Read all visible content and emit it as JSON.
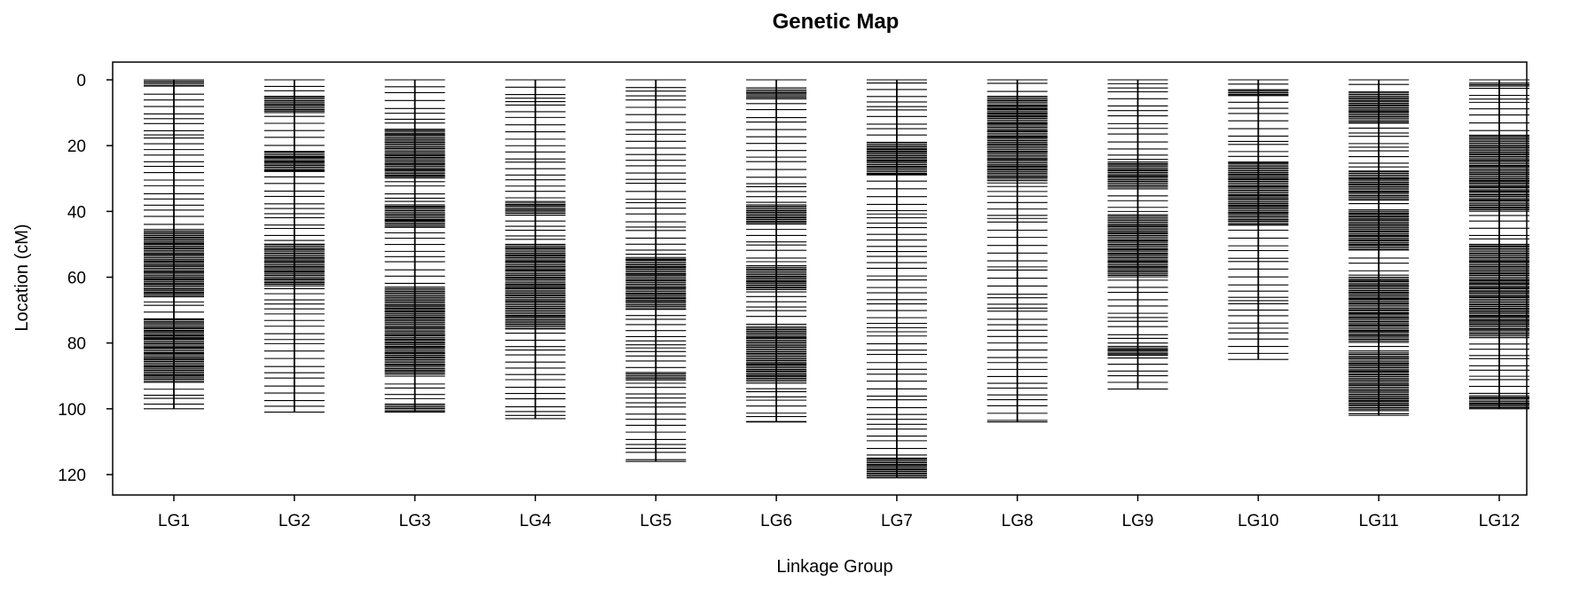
{
  "chart_data": {
    "type": "genetic_map",
    "title": "Genetic Map",
    "xlabel": "Linkage Group",
    "ylabel": "Location (cM)",
    "ylim": [
      0,
      126
    ],
    "y_reversed": true,
    "yticks": [
      0,
      20,
      40,
      60,
      80,
      100,
      120
    ],
    "linkage_groups": [
      {
        "name": "LG1",
        "length": 100,
        "dense_regions": [
          [
            46,
            66
          ],
          [
            73,
            92
          ],
          [
            0,
            2
          ]
        ]
      },
      {
        "name": "LG2",
        "length": 101,
        "dense_regions": [
          [
            5,
            10
          ],
          [
            22,
            28
          ],
          [
            50,
            63
          ]
        ]
      },
      {
        "name": "LG3",
        "length": 101,
        "dense_regions": [
          [
            15,
            30
          ],
          [
            38,
            45
          ],
          [
            63,
            90
          ],
          [
            99,
            101
          ]
        ]
      },
      {
        "name": "LG4",
        "length": 103,
        "dense_regions": [
          [
            37,
            41
          ],
          [
            50,
            76
          ]
        ]
      },
      {
        "name": "LG5",
        "length": 116,
        "dense_regions": [
          [
            54,
            70
          ],
          [
            89,
            91
          ]
        ]
      },
      {
        "name": "LG6",
        "length": 104,
        "dense_regions": [
          [
            3,
            6
          ],
          [
            38,
            44
          ],
          [
            57,
            64
          ],
          [
            75,
            92
          ]
        ]
      },
      {
        "name": "LG7",
        "length": 121,
        "dense_regions": [
          [
            19,
            29
          ],
          [
            115,
            121
          ]
        ]
      },
      {
        "name": "LG8",
        "length": 104,
        "dense_regions": [
          [
            5,
            31
          ]
        ]
      },
      {
        "name": "LG9",
        "length": 94,
        "dense_regions": [
          [
            25,
            33
          ],
          [
            41,
            60
          ],
          [
            81,
            84
          ]
        ]
      },
      {
        "name": "LG10",
        "length": 85,
        "dense_regions": [
          [
            3,
            5
          ],
          [
            25,
            44
          ]
        ]
      },
      {
        "name": "LG11",
        "length": 102,
        "dense_regions": [
          [
            4,
            13
          ],
          [
            28,
            37
          ],
          [
            40,
            52
          ],
          [
            60,
            80
          ],
          [
            83,
            101
          ]
        ]
      },
      {
        "name": "LG12",
        "length": 100,
        "dense_regions": [
          [
            1,
            2
          ],
          [
            17,
            40
          ],
          [
            50,
            78
          ],
          [
            96,
            100
          ]
        ]
      }
    ]
  }
}
